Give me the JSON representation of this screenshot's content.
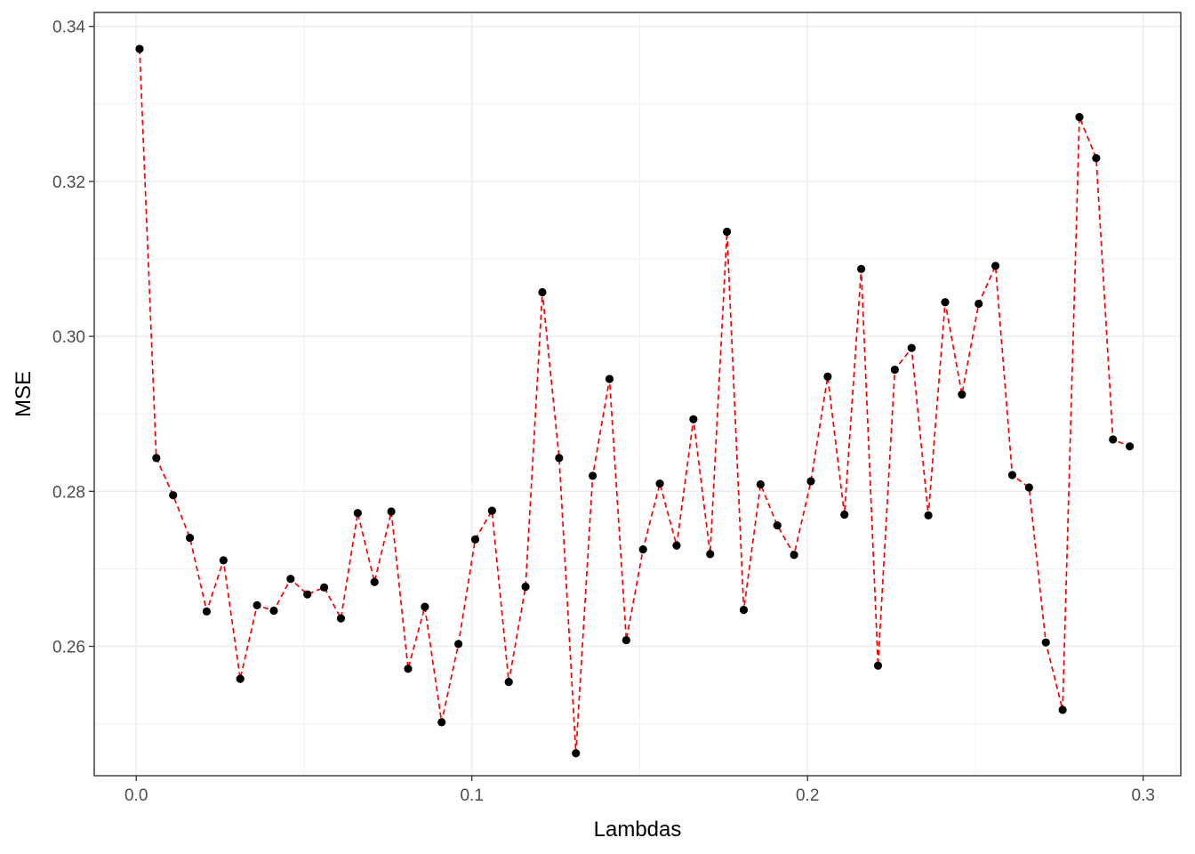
{
  "chart_data": {
    "type": "line",
    "xlabel": "Lambdas",
    "ylabel": "MSE",
    "xlim": [
      -0.0125,
      0.3112
    ],
    "ylim": [
      0.2433,
      0.3418
    ],
    "x_ticks": [
      0.0,
      0.1,
      0.2,
      0.3
    ],
    "x_tick_labels": [
      "0.0",
      "0.1",
      "0.2",
      "0.3"
    ],
    "y_ticks": [
      0.26,
      0.28,
      0.3,
      0.32,
      0.34
    ],
    "y_tick_labels": [
      "0.26",
      "0.28",
      "0.30",
      "0.32",
      "0.34"
    ],
    "grid": true,
    "line_style": "dashed",
    "line_color": "#ff0000",
    "point_color": "#000000",
    "series": [
      {
        "x": [
          0.001,
          0.006,
          0.011,
          0.016,
          0.021,
          0.026,
          0.031,
          0.036,
          0.041,
          0.046,
          0.051,
          0.056,
          0.061,
          0.066,
          0.071,
          0.076,
          0.081,
          0.086,
          0.091,
          0.096,
          0.101,
          0.106,
          0.111,
          0.116,
          0.121,
          0.126,
          0.131,
          0.136,
          0.141,
          0.146,
          0.151,
          0.156,
          0.161,
          0.166,
          0.171,
          0.176,
          0.181,
          0.186,
          0.191,
          0.196,
          0.201,
          0.206,
          0.211,
          0.216,
          0.221,
          0.226,
          0.231,
          0.236,
          0.241,
          0.246,
          0.251,
          0.256,
          0.261,
          0.266,
          0.271,
          0.276,
          0.281,
          0.286,
          0.291,
          0.296
        ],
        "y": [
          0.3371,
          0.2843,
          0.2795,
          0.274,
          0.2645,
          0.2711,
          0.2558,
          0.2653,
          0.2646,
          0.2687,
          0.2667,
          0.2676,
          0.2636,
          0.2772,
          0.2683,
          0.2774,
          0.2571,
          0.2651,
          0.2502,
          0.2603,
          0.2738,
          0.2775,
          0.2554,
          0.2677,
          0.3057,
          0.2843,
          0.2462,
          0.282,
          0.2945,
          0.2608,
          0.2725,
          0.281,
          0.273,
          0.2893,
          0.2719,
          0.3135,
          0.2647,
          0.2809,
          0.2756,
          0.2718,
          0.2813,
          0.2948,
          0.277,
          0.3087,
          0.2575,
          0.2957,
          0.2985,
          0.2769,
          0.3044,
          0.2925,
          0.3042,
          0.3091,
          0.2821,
          0.2805,
          0.2605,
          0.2518,
          0.3283,
          0.323,
          0.2867,
          0.2858
        ]
      }
    ]
  }
}
